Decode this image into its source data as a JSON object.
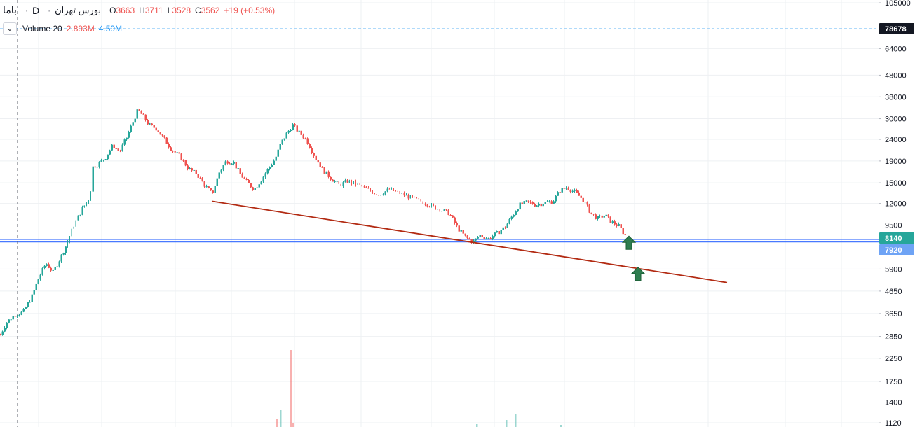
{
  "legend": {
    "symbol": "باما",
    "resolution": "D",
    "exchange": "بورس تهران",
    "open_label": "O",
    "open": "3663",
    "high_label": "H",
    "high": "3711",
    "low_label": "L",
    "low": "3528",
    "close_label": "C",
    "close": "3562",
    "change": "+19 (+0.53%)"
  },
  "volume": {
    "toggle_icon": "chevron-down-icon",
    "label": "Volume 20",
    "value1": "2.893M",
    "value2": "4.59M"
  },
  "colors": {
    "up": "#26a69a",
    "down": "#ef5350",
    "trendline": "#b22a12",
    "hline": "#2962ff",
    "arrow": "#2e7d4f",
    "grid": "#eef0f3",
    "volume_line": "#2196f3"
  },
  "chart_data": {
    "type": "candlestick",
    "scale": "log",
    "y_axis_ticks": [
      "105000",
      "64000",
      "48000",
      "38000",
      "30000",
      "24000",
      "19000",
      "15000",
      "12000",
      "9500",
      "5900",
      "4650",
      "3650",
      "2850",
      "2250",
      "1750",
      "1400",
      "1120"
    ],
    "price_badges": [
      {
        "label": "78678",
        "style": "dark"
      },
      {
        "label": "8140",
        "style": "green"
      },
      {
        "label": "7920",
        "style": "blue"
      }
    ],
    "price_path": [
      {
        "t": 0,
        "p": 2900
      },
      {
        "t": 8,
        "p": 3300
      },
      {
        "t": 20,
        "p": 3600
      },
      {
        "t": 32,
        "p": 3700
      },
      {
        "t": 45,
        "p": 4400
      },
      {
        "t": 55,
        "p": 5400
      },
      {
        "t": 65,
        "p": 6300
      },
      {
        "t": 75,
        "p": 5700
      },
      {
        "t": 85,
        "p": 6600
      },
      {
        "t": 95,
        "p": 7800
      },
      {
        "t": 105,
        "p": 9500
      },
      {
        "t": 118,
        "p": 11500
      },
      {
        "t": 128,
        "p": 12800
      },
      {
        "t": 132,
        "p": 17800
      },
      {
        "t": 140,
        "p": 18500
      },
      {
        "t": 150,
        "p": 19800
      },
      {
        "t": 160,
        "p": 22500
      },
      {
        "t": 170,
        "p": 21000
      },
      {
        "t": 180,
        "p": 24500
      },
      {
        "t": 188,
        "p": 28500
      },
      {
        "t": 196,
        "p": 33000
      },
      {
        "t": 203,
        "p": 31000
      },
      {
        "t": 212,
        "p": 28000
      },
      {
        "t": 222,
        "p": 27000
      },
      {
        "t": 232,
        "p": 24500
      },
      {
        "t": 244,
        "p": 21500
      },
      {
        "t": 256,
        "p": 20000
      },
      {
        "t": 268,
        "p": 17500
      },
      {
        "t": 280,
        "p": 16500
      },
      {
        "t": 292,
        "p": 14500
      },
      {
        "t": 302,
        "p": 13300
      },
      {
        "t": 312,
        "p": 16800
      },
      {
        "t": 322,
        "p": 19000
      },
      {
        "t": 332,
        "p": 18800
      },
      {
        "t": 342,
        "p": 16500
      },
      {
        "t": 352,
        "p": 15000
      },
      {
        "t": 362,
        "p": 14000
      },
      {
        "t": 372,
        "p": 15500
      },
      {
        "t": 382,
        "p": 17500
      },
      {
        "t": 392,
        "p": 19500
      },
      {
        "t": 400,
        "p": 23000
      },
      {
        "t": 408,
        "p": 25500
      },
      {
        "t": 417,
        "p": 28000
      },
      {
        "t": 425,
        "p": 26000
      },
      {
        "t": 436,
        "p": 24000
      },
      {
        "t": 448,
        "p": 20000
      },
      {
        "t": 460,
        "p": 17200
      },
      {
        "t": 472,
        "p": 15700
      },
      {
        "t": 484,
        "p": 14600
      },
      {
        "t": 495,
        "p": 15300
      },
      {
        "t": 510,
        "p": 14700
      },
      {
        "t": 525,
        "p": 13900
      },
      {
        "t": 540,
        "p": 13200
      },
      {
        "t": 555,
        "p": 14000
      },
      {
        "t": 565,
        "p": 13600
      },
      {
        "t": 580,
        "p": 13000
      },
      {
        "t": 600,
        "p": 12300
      },
      {
        "t": 620,
        "p": 11500
      },
      {
        "t": 640,
        "p": 10800
      },
      {
        "t": 652,
        "p": 9200
      },
      {
        "t": 664,
        "p": 8300
      },
      {
        "t": 674,
        "p": 7900
      },
      {
        "t": 684,
        "p": 8500
      },
      {
        "t": 696,
        "p": 8200
      },
      {
        "t": 708,
        "p": 8700
      },
      {
        "t": 720,
        "p": 9300
      },
      {
        "t": 730,
        "p": 10500
      },
      {
        "t": 740,
        "p": 11800
      },
      {
        "t": 752,
        "p": 12200
      },
      {
        "t": 764,
        "p": 11800
      },
      {
        "t": 776,
        "p": 12100
      },
      {
        "t": 788,
        "p": 12300
      },
      {
        "t": 798,
        "p": 13800
      },
      {
        "t": 808,
        "p": 14300
      },
      {
        "t": 820,
        "p": 13500
      },
      {
        "t": 832,
        "p": 12400
      },
      {
        "t": 842,
        "p": 10800
      },
      {
        "t": 852,
        "p": 10200
      },
      {
        "t": 862,
        "p": 10600
      },
      {
        "t": 872,
        "p": 9800
      },
      {
        "t": 882,
        "p": 9400
      },
      {
        "t": 892,
        "p": 8400
      }
    ],
    "trendline": {
      "t1": 302,
      "p1": 12300,
      "t2": 1037,
      "p2": 5100
    },
    "horizontal_lines": [
      8140,
      7920
    ],
    "arrows": [
      {
        "t": 897,
        "p": 7700
      },
      {
        "t": 910,
        "p": 5500
      }
    ],
    "volume_bars": [
      {
        "t": 395,
        "v": 12,
        "dir": "down"
      },
      {
        "t": 400,
        "v": 24,
        "dir": "up"
      },
      {
        "t": 415,
        "v": 110,
        "dir": "down"
      },
      {
        "t": 418,
        "v": 6,
        "dir": "down"
      },
      {
        "t": 680,
        "v": 4,
        "dir": "up"
      },
      {
        "t": 722,
        "v": 10,
        "dir": "up"
      },
      {
        "t": 735,
        "v": 18,
        "dir": "up"
      },
      {
        "t": 800,
        "v": 3,
        "dir": "up"
      }
    ]
  }
}
